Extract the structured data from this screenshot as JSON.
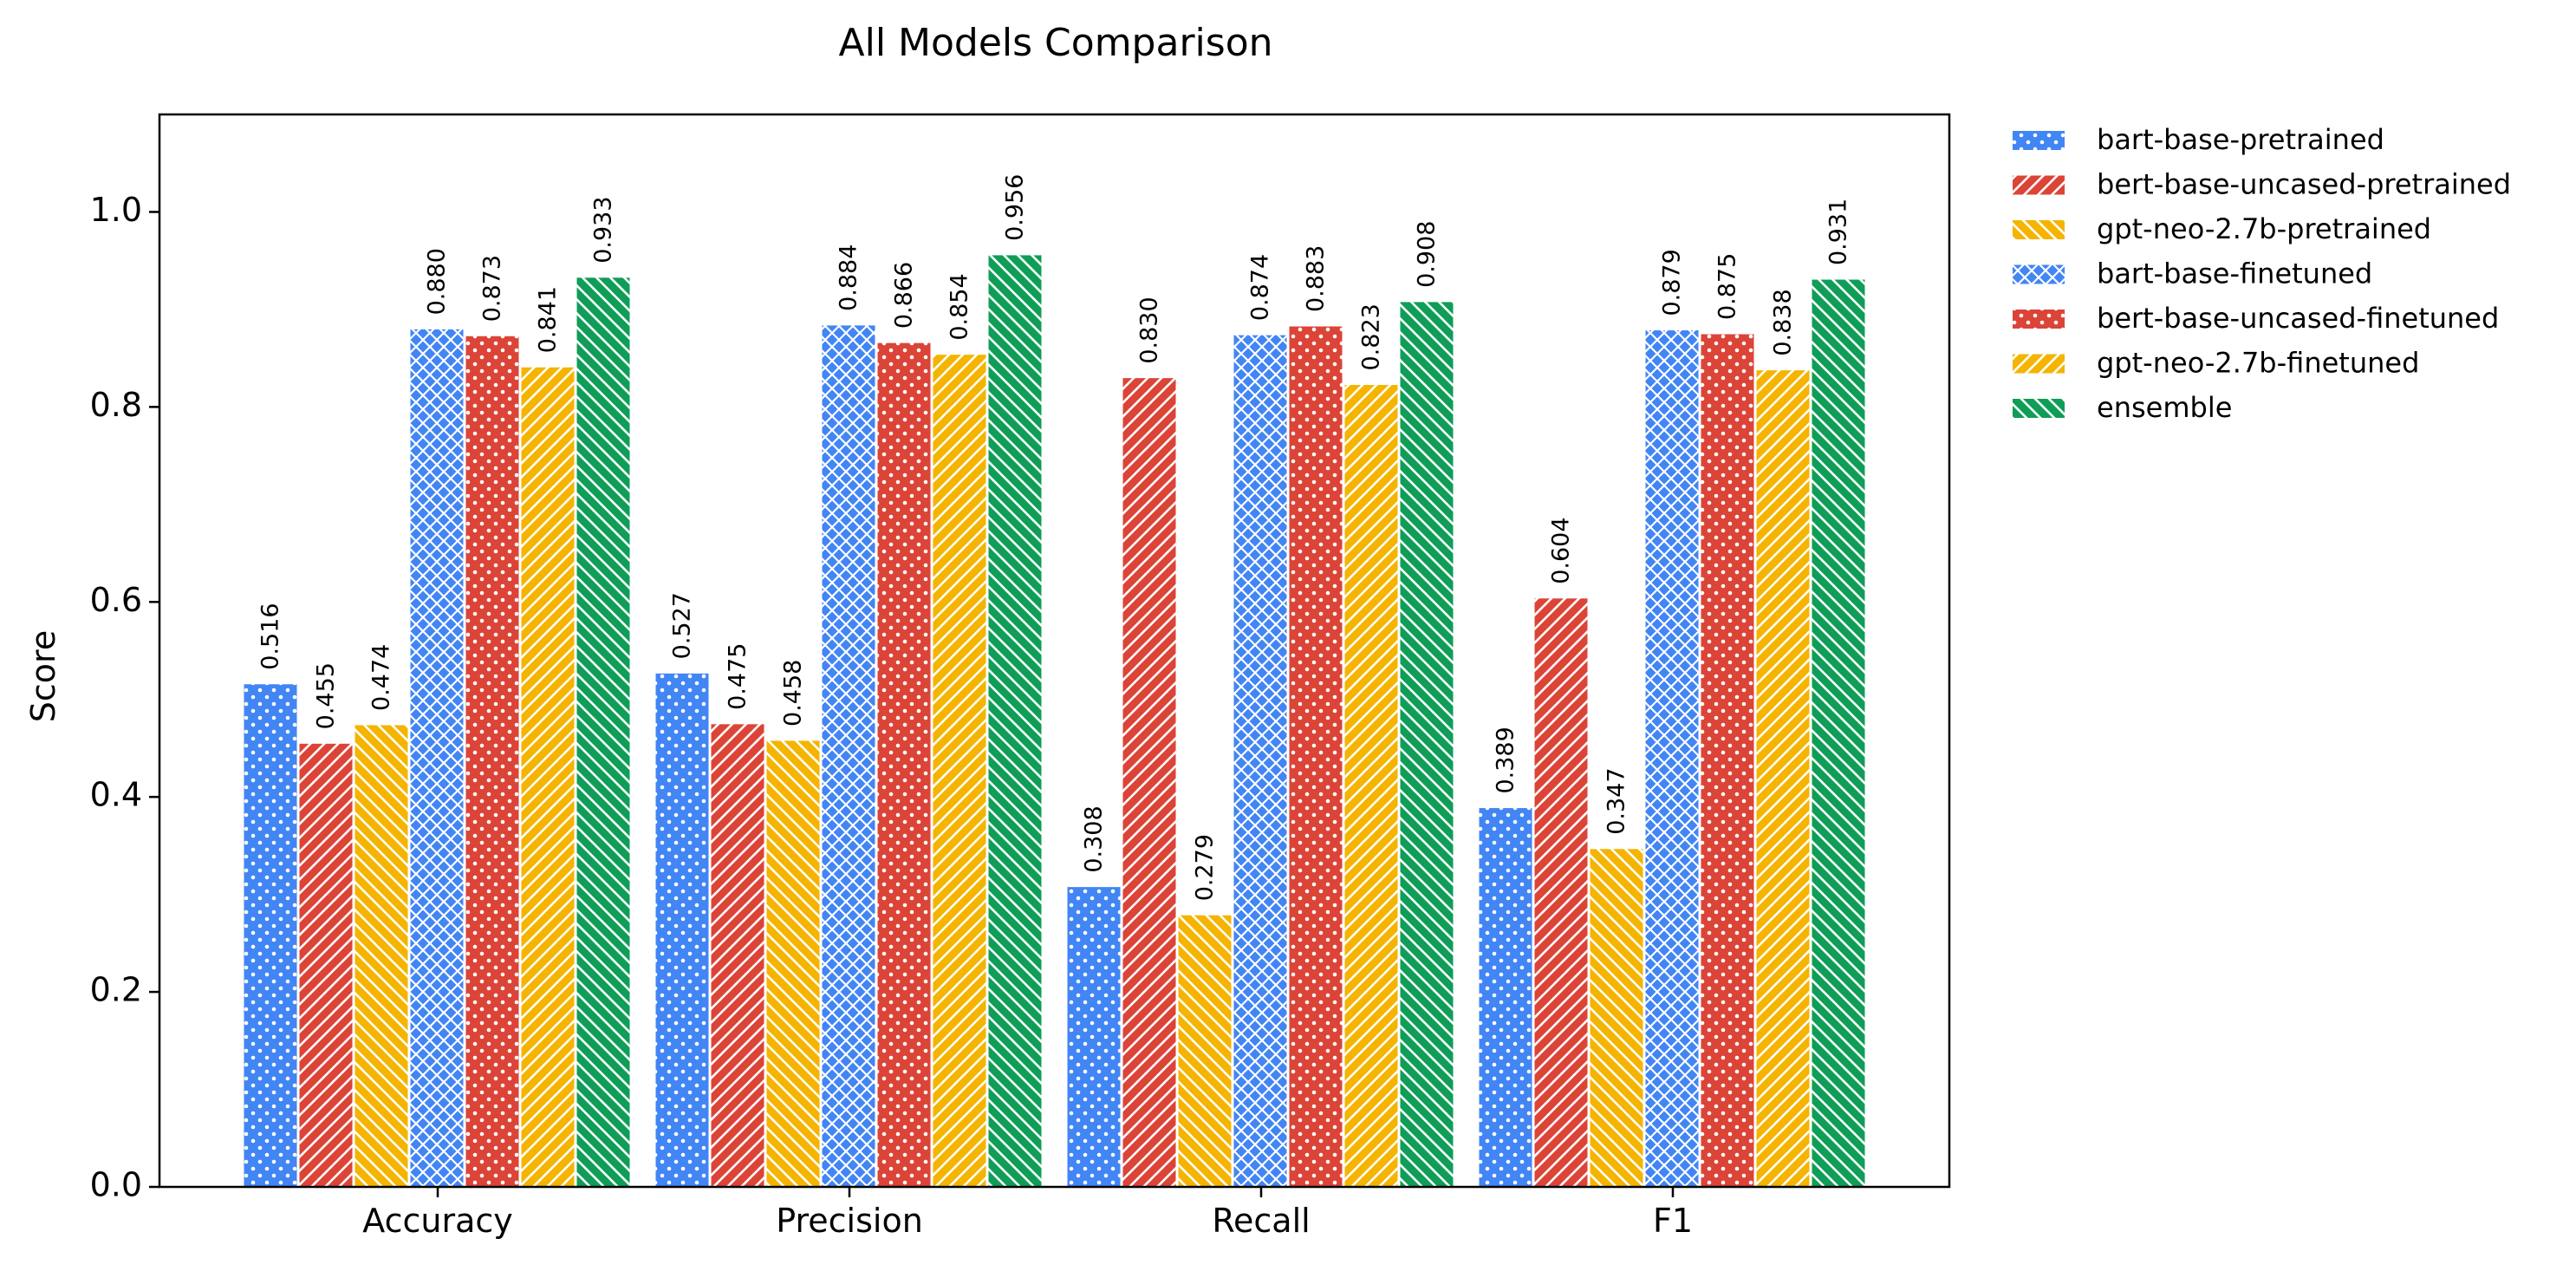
{
  "chart_data": {
    "type": "bar",
    "title": "All Models Comparison",
    "xlabel": "",
    "ylabel": "Score",
    "ylim": [
      0,
      1.1
    ],
    "yticks": [
      "0.0",
      "0.2",
      "0.4",
      "0.6",
      "0.8",
      "1.0"
    ],
    "categories": [
      "Accuracy",
      "Precision",
      "Recall",
      "F1"
    ],
    "legend_position": "outside-top-right",
    "series": [
      {
        "name": "bart-base-pretrained",
        "color": "#4285F4",
        "pattern": "dots",
        "values": [
          0.516,
          0.527,
          0.308,
          0.389
        ],
        "labels": [
          "0.516",
          "0.527",
          "0.308",
          "0.389"
        ]
      },
      {
        "name": "bert-base-uncased-pretrained",
        "color": "#DB4437",
        "pattern": "diagonal",
        "values": [
          0.455,
          0.475,
          0.83,
          0.604
        ],
        "labels": [
          "0.455",
          "0.475",
          "0.830",
          "0.604"
        ]
      },
      {
        "name": "gpt-neo-2.7b-pretrained",
        "color": "#F4B400",
        "pattern": "backdiagonal",
        "values": [
          0.474,
          0.458,
          0.279,
          0.347
        ],
        "labels": [
          "0.474",
          "0.458",
          "0.279",
          "0.347"
        ]
      },
      {
        "name": "bart-base-finetuned",
        "color": "#4285F4",
        "pattern": "crosshatch",
        "values": [
          0.88,
          0.884,
          0.874,
          0.879
        ],
        "labels": [
          "0.880",
          "0.884",
          "0.874",
          "0.879"
        ]
      },
      {
        "name": "bert-base-uncased-finetuned",
        "color": "#DB4437",
        "pattern": "dots",
        "values": [
          0.873,
          0.866,
          0.883,
          0.875
        ],
        "labels": [
          "0.873",
          "0.866",
          "0.883",
          "0.875"
        ]
      },
      {
        "name": "gpt-neo-2.7b-finetuned",
        "color": "#F4B400",
        "pattern": "diagonal",
        "values": [
          0.841,
          0.854,
          0.823,
          0.838
        ],
        "labels": [
          "0.841",
          "0.854",
          "0.823",
          "0.838"
        ]
      },
      {
        "name": "ensemble",
        "color": "#0F9D58",
        "pattern": "backdiagonal",
        "values": [
          0.933,
          0.956,
          0.908,
          0.931
        ],
        "labels": [
          "0.933",
          "0.956",
          "0.908",
          "0.931"
        ]
      }
    ]
  }
}
